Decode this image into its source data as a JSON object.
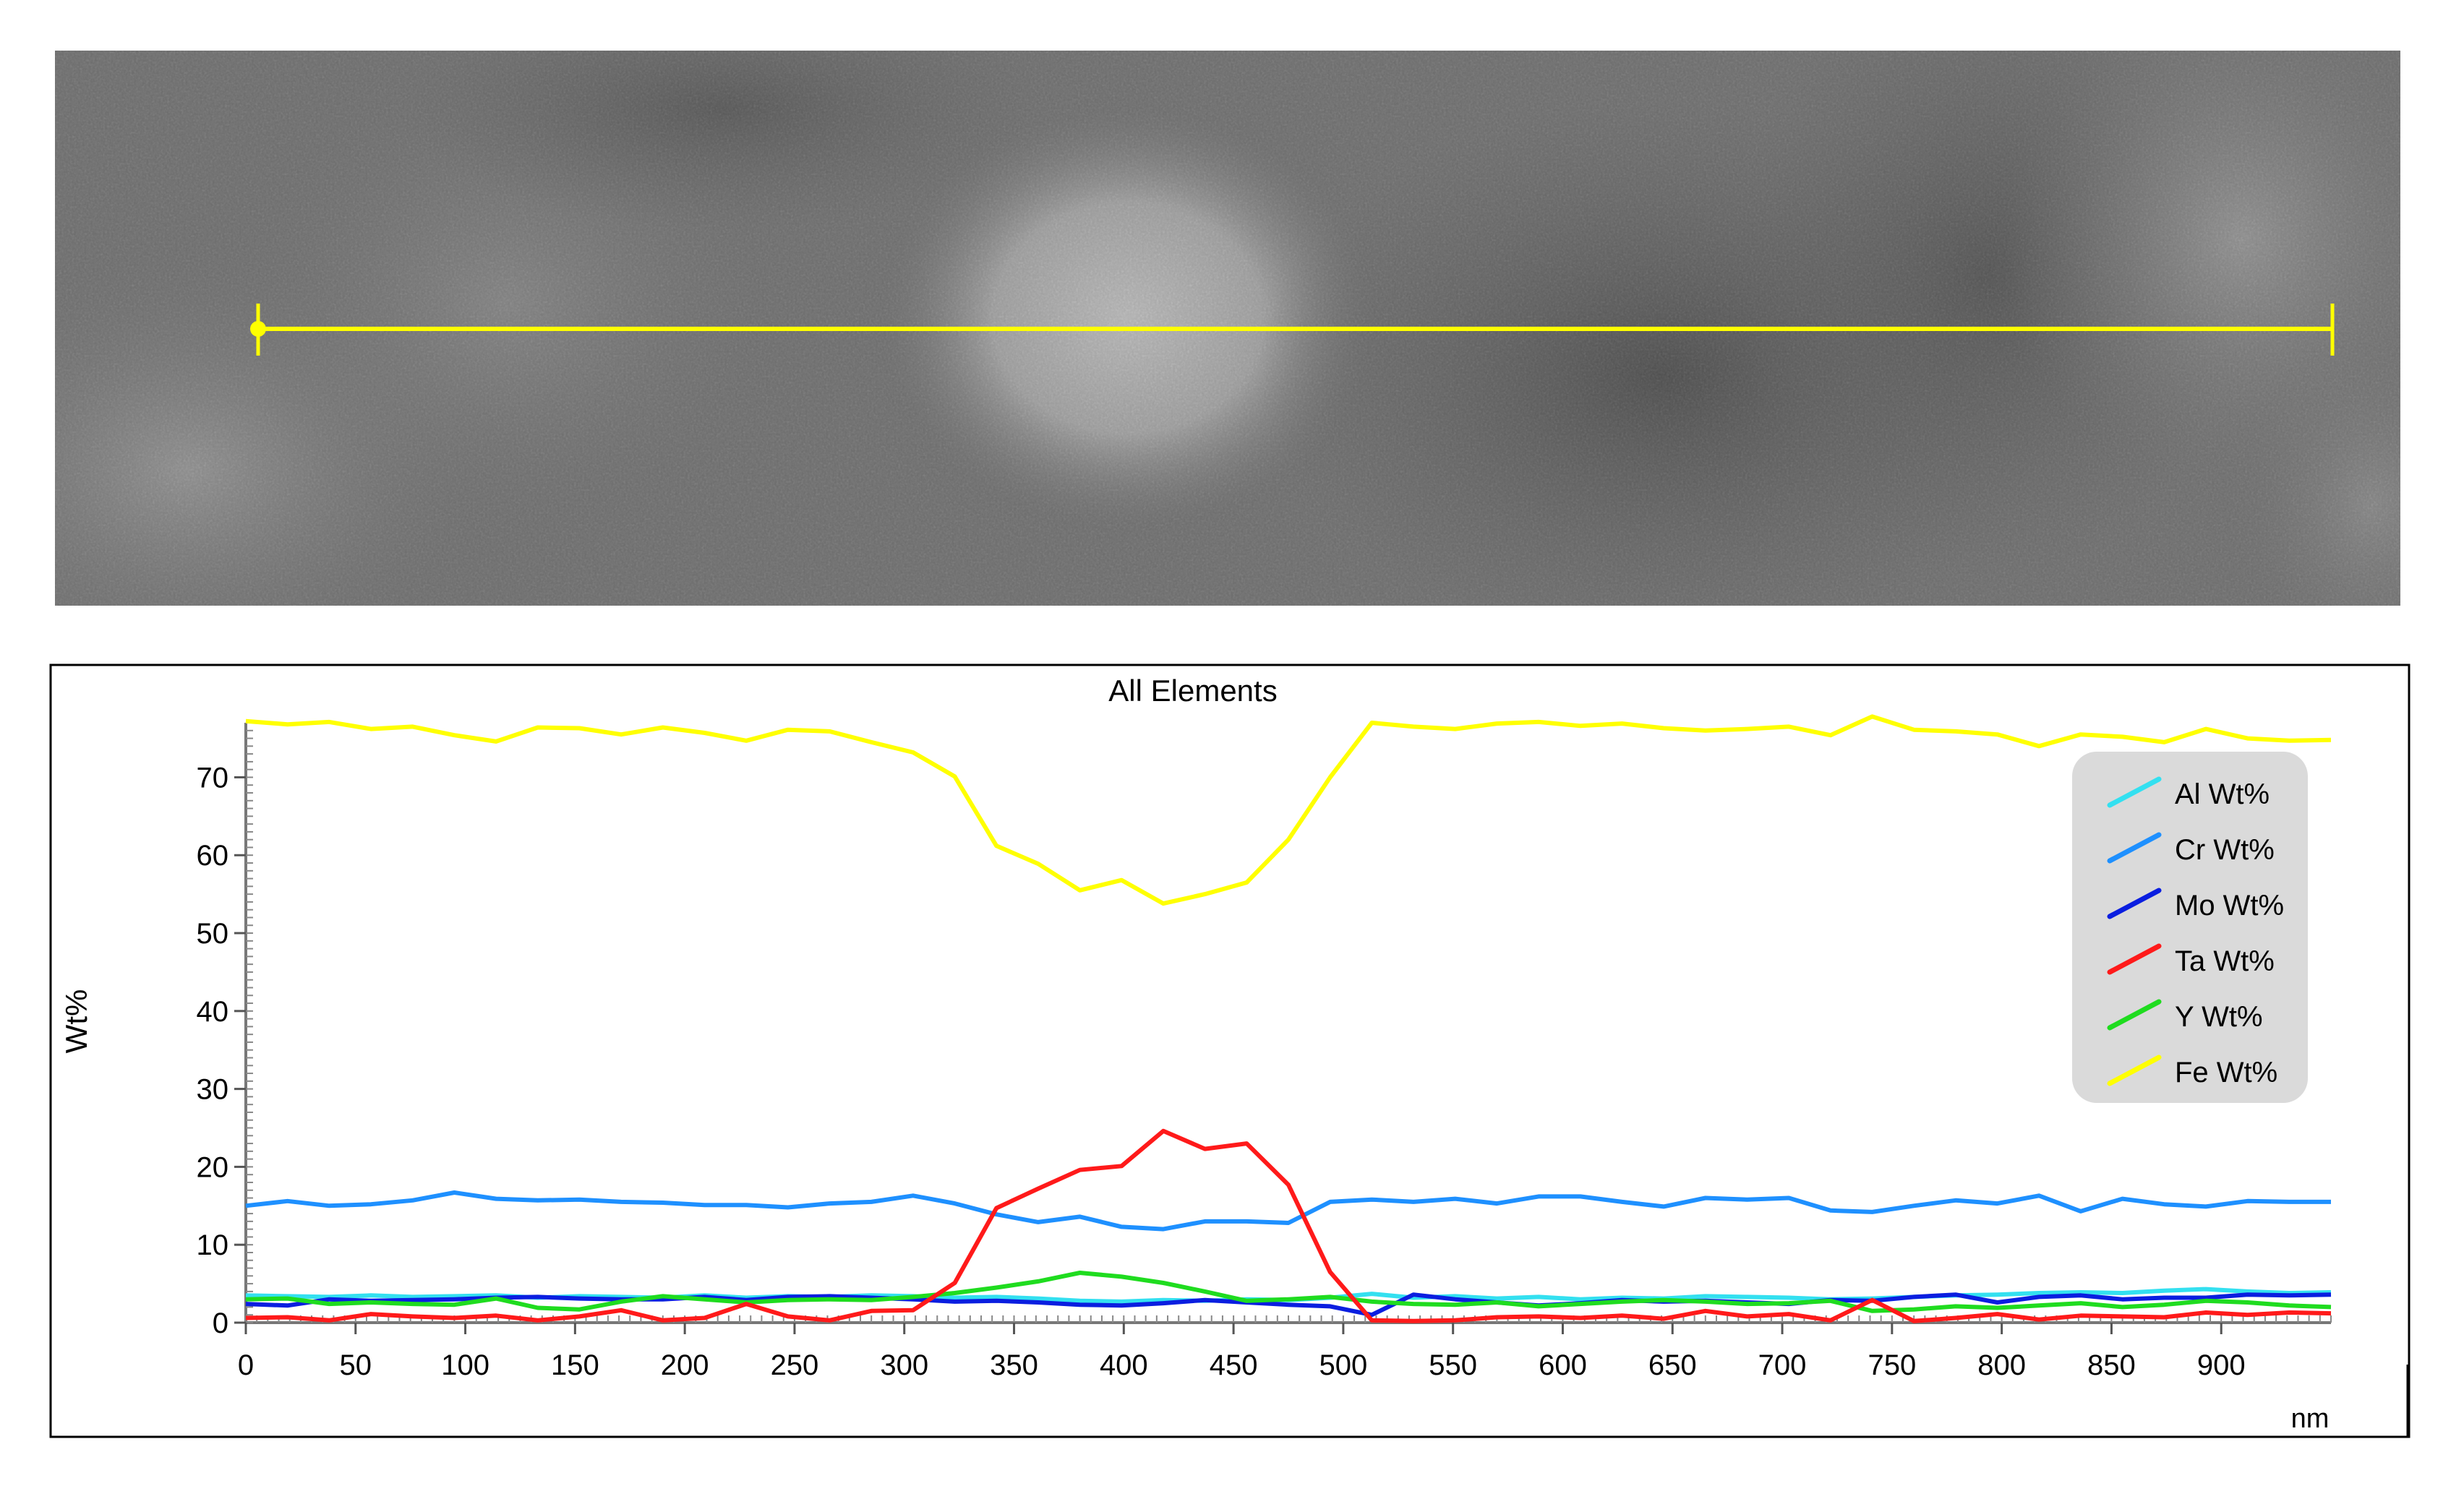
{
  "image_panel": {
    "scan_line_color": "#ffff00"
  },
  "chart_data": {
    "type": "line",
    "title": "All Elements",
    "xlabel": "nm",
    "ylabel": "Wt%",
    "xlim": [
      0,
      950
    ],
    "ylim": [
      0,
      77
    ],
    "x_ticks": [
      0,
      50,
      100,
      150,
      200,
      250,
      300,
      350,
      400,
      450,
      500,
      550,
      600,
      650,
      700,
      750,
      800,
      850,
      900
    ],
    "y_ticks": [
      0,
      10,
      20,
      30,
      40,
      50,
      60,
      70
    ],
    "legend_position": "top-right",
    "x": [
      0,
      19,
      38,
      57,
      76,
      95,
      114,
      133,
      152,
      171,
      190,
      209,
      228,
      247,
      266,
      285,
      304,
      323,
      342,
      361,
      380,
      399,
      418,
      437,
      456,
      475,
      494,
      513,
      532,
      551,
      570,
      589,
      608,
      627,
      646,
      665,
      684,
      703,
      722,
      741,
      760,
      779,
      798,
      817,
      836,
      855,
      874,
      893,
      912,
      931,
      950
    ],
    "series": [
      {
        "name": "Al Wt%",
        "color": "#33e0f0",
        "values": [
          3.5,
          3.4,
          3.3,
          3.5,
          3.3,
          3.4,
          3.5,
          3.2,
          3.4,
          3.3,
          3.2,
          3.5,
          3.2,
          3.4,
          3.3,
          3.5,
          3.4,
          3.2,
          3.3,
          3.1,
          2.8,
          2.7,
          2.9,
          2.8,
          3.0,
          2.9,
          3.2,
          3.7,
          3.2,
          3.4,
          3.1,
          3.3,
          3.0,
          3.2,
          3.1,
          3.4,
          3.3,
          3.2,
          3.0,
          3.1,
          3.3,
          3.5,
          3.6,
          3.8,
          3.9,
          3.8,
          4.1,
          4.3,
          4.0,
          3.8,
          3.9
        ]
      },
      {
        "name": "Cr Wt%",
        "color": "#1e90ff",
        "values": [
          15.0,
          15.6,
          15.0,
          15.2,
          15.7,
          16.7,
          15.9,
          15.7,
          15.8,
          15.5,
          15.4,
          15.1,
          15.1,
          14.8,
          15.3,
          15.5,
          16.3,
          15.3,
          13.9,
          12.9,
          13.6,
          12.3,
          12.0,
          13.0,
          13.0,
          12.8,
          15.5,
          15.8,
          15.5,
          15.9,
          15.3,
          16.2,
          16.2,
          15.5,
          14.9,
          16.0,
          15.8,
          16.0,
          14.4,
          14.2,
          15.0,
          15.7,
          15.3,
          16.3,
          14.3,
          15.9,
          15.2,
          14.9,
          15.6,
          15.5,
          15.5
        ]
      },
      {
        "name": "Mo Wt%",
        "color": "#0a1ee0",
        "values": [
          2.4,
          2.2,
          3.0,
          2.8,
          2.9,
          3.0,
          3.2,
          3.3,
          3.1,
          3.0,
          3.0,
          3.3,
          2.9,
          3.3,
          3.4,
          3.2,
          3.0,
          2.7,
          2.8,
          2.6,
          2.3,
          2.2,
          2.5,
          2.9,
          2.6,
          2.3,
          2.1,
          1.0,
          3.6,
          3.0,
          2.6,
          2.2,
          2.5,
          2.9,
          2.7,
          2.8,
          2.6,
          2.4,
          2.9,
          2.8,
          3.3,
          3.6,
          2.6,
          3.3,
          3.5,
          3.0,
          3.2,
          3.2,
          3.6,
          3.5,
          3.6
        ]
      },
      {
        "name": "Ta Wt%",
        "color": "#ff1a1a",
        "values": [
          0.6,
          0.7,
          0.3,
          1.1,
          0.8,
          0.6,
          0.9,
          0.3,
          0.8,
          1.6,
          0.3,
          0.6,
          2.4,
          0.8,
          0.3,
          1.5,
          1.6,
          5.1,
          14.7,
          17.2,
          19.6,
          20.1,
          24.6,
          22.3,
          23.0,
          17.7,
          6.5,
          0.3,
          0.2,
          0.3,
          0.7,
          0.8,
          0.6,
          0.9,
          0.5,
          1.5,
          0.8,
          1.1,
          0.3,
          2.9,
          0.2,
          0.6,
          1.1,
          0.4,
          0.9,
          0.8,
          0.7,
          1.3,
          1.0,
          1.3,
          1.2
        ]
      },
      {
        "name": "Y Wt%",
        "color": "#1fdc1f",
        "values": [
          3.0,
          3.1,
          2.4,
          2.6,
          2.4,
          2.3,
          3.1,
          1.9,
          1.7,
          2.7,
          3.4,
          3.0,
          2.6,
          2.9,
          3.0,
          2.9,
          3.3,
          3.8,
          4.5,
          5.3,
          6.4,
          5.9,
          5.1,
          4.0,
          2.8,
          3.0,
          3.3,
          2.7,
          2.4,
          2.3,
          2.6,
          2.1,
          2.4,
          2.7,
          2.9,
          2.7,
          2.4,
          2.5,
          2.8,
          1.5,
          1.7,
          2.1,
          1.9,
          2.2,
          2.5,
          2.0,
          2.3,
          2.8,
          2.6,
          2.2,
          2.0
        ]
      },
      {
        "name": "Fe Wt%",
        "color": "#ffff00",
        "values": [
          77.2,
          76.8,
          77.1,
          76.2,
          76.5,
          75.4,
          74.6,
          76.4,
          76.3,
          75.5,
          76.4,
          75.7,
          74.7,
          76.1,
          75.9,
          74.5,
          73.2,
          70.1,
          61.2,
          58.9,
          55.5,
          56.8,
          53.8,
          55.0,
          56.5,
          62.0,
          70.0,
          77.0,
          76.5,
          76.2,
          76.9,
          77.1,
          76.6,
          76.9,
          76.3,
          76.0,
          76.2,
          76.5,
          75.4,
          77.8,
          76.1,
          75.9,
          75.5,
          74.0,
          75.5,
          75.2,
          74.5,
          76.2,
          75.0,
          74.7,
          74.8
        ]
      }
    ]
  }
}
